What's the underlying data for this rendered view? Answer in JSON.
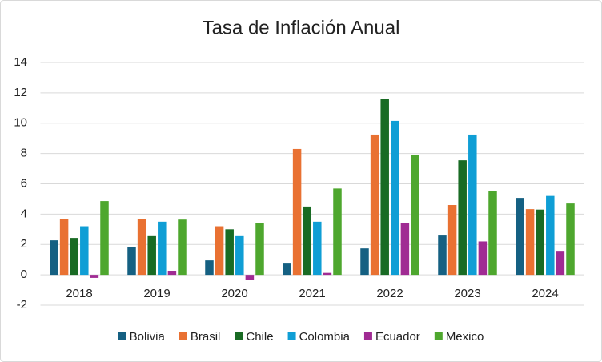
{
  "chart_data": {
    "type": "bar",
    "title": "Tasa de Inflación Anual",
    "categories": [
      "2018",
      "2019",
      "2020",
      "2021",
      "2022",
      "2023",
      "2024"
    ],
    "series": [
      {
        "name": "Bolivia",
        "color": "#156082",
        "values": [
          2.27,
          1.85,
          0.95,
          0.74,
          1.74,
          2.59,
          5.07
        ]
      },
      {
        "name": "Brasil",
        "color": "#e97132",
        "values": [
          3.66,
          3.7,
          3.2,
          8.3,
          9.25,
          4.6,
          4.33
        ]
      },
      {
        "name": "Chile",
        "color": "#196b24",
        "values": [
          2.43,
          2.55,
          3.0,
          4.5,
          11.6,
          7.55,
          4.3
        ]
      },
      {
        "name": "Colombia",
        "color": "#0f9ed5",
        "values": [
          3.2,
          3.5,
          2.55,
          3.5,
          10.15,
          9.25,
          5.2
        ]
      },
      {
        "name": "Ecuador",
        "color": "#a02b93",
        "values": [
          -0.2,
          0.27,
          -0.34,
          0.13,
          3.43,
          2.2,
          1.53
        ]
      },
      {
        "name": "Mexico",
        "color": "#4ea72e",
        "values": [
          4.86,
          3.64,
          3.4,
          5.69,
          7.9,
          5.5,
          4.7
        ]
      }
    ],
    "ylim": [
      -2,
      14
    ],
    "yticks": [
      -2,
      0,
      2,
      4,
      6,
      8,
      10,
      12,
      14
    ],
    "grid": true,
    "legend": "bottom"
  }
}
